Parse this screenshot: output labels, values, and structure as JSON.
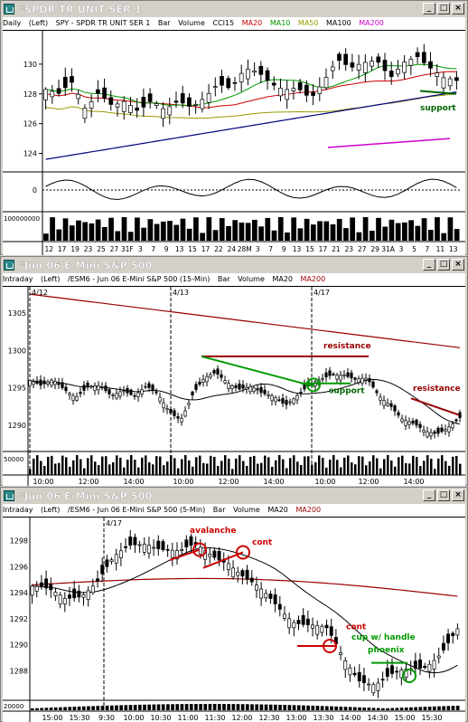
{
  "windows": [
    {
      "title": "*SPDR TR UNIT SER 1",
      "header": {
        "interval": "Daily",
        "scale": "(Left)",
        "symbol": "SPY - SPDR TR UNIT SER 1",
        "chart_type": "Bar",
        "volume": "Volume",
        "indicator": "CCI15",
        "studies": [
          {
            "label": "MA20",
            "color": "#cc0000"
          },
          {
            "label": "MA10",
            "color": "#009900"
          },
          {
            "label": "MA50",
            "color": "#999900"
          },
          {
            "label": "MA100",
            "color": "#000000"
          },
          {
            "label": "MA200",
            "color": "#cc00cc"
          }
        ]
      },
      "price_ticks": [
        "130",
        "128",
        "126",
        "124"
      ],
      "cci_ticks": [
        "0"
      ],
      "volume_label": "100000000",
      "x_ticks": [
        "12",
        "17",
        "19",
        "23",
        "25",
        "27",
        "31F",
        "3",
        "7",
        "9",
        "13",
        "15",
        "17",
        "22",
        "24",
        "28M",
        "3",
        "7",
        "9",
        "13",
        "15",
        "17",
        "21",
        "23",
        "27",
        "29",
        "31A",
        "3",
        "5",
        "7",
        "11",
        "13"
      ],
      "annotations": [
        {
          "text": "support",
          "color": "#006600"
        }
      ]
    },
    {
      "title": "*Jun 06  E-Mini S&P 500",
      "header": {
        "interval": "Intraday",
        "scale": "(Left)",
        "symbol": "/ESM6 - Jun 06  E-Mini S&P 500  (15-Min)",
        "chart_type": "Bar",
        "volume": "Volume",
        "studies": [
          {
            "label": "MA20",
            "color": "#000000"
          },
          {
            "label": "MA200",
            "color": "#990000"
          }
        ]
      },
      "price_ticks": [
        "1305",
        "1300",
        "1295",
        "1290"
      ],
      "volume_label": "50000",
      "date_marks": [
        "4/12",
        "4/13",
        "4/17"
      ],
      "x_ticks": [
        "10:00",
        "12:00",
        "14:00",
        "10:00",
        "12:00",
        "14:00",
        "10:00",
        "12:00",
        "14:00"
      ],
      "annotations": [
        {
          "text": "resistance",
          "color": "#990000"
        },
        {
          "text": "support",
          "color": "#006600"
        },
        {
          "text": "resistance",
          "color": "#990000"
        }
      ]
    },
    {
      "title": "*Jun 06  E-Mini S&P 500",
      "header": {
        "interval": "Intraday",
        "scale": "(Left)",
        "symbol": "/ESM6 - Jun 06  E-Mini S&P 500  (5-Min)",
        "chart_type": "Bar",
        "volume": "Volume",
        "studies": [
          {
            "label": "MA20",
            "color": "#000000"
          },
          {
            "label": "MA200",
            "color": "#990000"
          }
        ]
      },
      "price_ticks": [
        "1298",
        "1296",
        "1294",
        "1292",
        "1290",
        "1288"
      ],
      "volume_label": "20000",
      "date_marks": [
        "4/17"
      ],
      "x_ticks": [
        "15:00",
        "15:30",
        "9:30",
        "10:00",
        "10:30",
        "11:00",
        "11:30",
        "12:00",
        "12:30",
        "13:00",
        "13:30",
        "14:00",
        "14:30",
        "15:00",
        "15:30"
      ],
      "annotations": [
        {
          "text": "avalanche",
          "color": "#cc0000"
        },
        {
          "text": "cont",
          "color": "#cc0000"
        },
        {
          "text": "cont",
          "color": "#cc0000"
        },
        {
          "text": "cup w/ handle",
          "color": "#009900"
        },
        {
          "text": "phoenix",
          "color": "#009900"
        }
      ]
    }
  ],
  "chart_data": [
    {
      "type": "candlestick",
      "title": "SPY - SPDR TR UNIT SER 1",
      "ylim": [
        123,
        132
      ],
      "x": [
        "12",
        "17",
        "19",
        "23",
        "25",
        "27",
        "31F",
        "3",
        "7",
        "9",
        "13",
        "15",
        "17",
        "22",
        "24",
        "28M",
        "3",
        "7",
        "9",
        "13",
        "15",
        "17",
        "21",
        "23",
        "27",
        "29",
        "31A",
        "3",
        "5",
        "7",
        "11",
        "13"
      ],
      "close": [
        128.3,
        127.8,
        128.5,
        126.8,
        128.2,
        127.5,
        127.8,
        126.9,
        127.4,
        126.6,
        127.3,
        127.1,
        128.0,
        129.0,
        128.5,
        129.6,
        129.2,
        128.4,
        128.2,
        128.6,
        128.0,
        129.1,
        130.3,
        129.5,
        129.8,
        130.1,
        129.2,
        130.4,
        130.8,
        129.8,
        128.9,
        128.6
      ],
      "series": [
        {
          "name": "MA20",
          "color": "#cc0000"
        },
        {
          "name": "MA10",
          "color": "#009900"
        },
        {
          "name": "MA50",
          "color": "#999900"
        },
        {
          "name": "MA100",
          "color": "#000000"
        },
        {
          "name": "MA200",
          "color": "#cc00cc"
        }
      ],
      "annotations": [
        "support"
      ]
    },
    {
      "type": "candlestick",
      "title": "/ESM6 - Jun 06 E-Mini S&P 500 (15-Min)",
      "ylim": [
        1287,
        1308
      ],
      "sessions": [
        "4/12",
        "4/13",
        "4/17"
      ],
      "close_path": [
        1296,
        1295,
        1296,
        1295,
        1294,
        1295,
        1295,
        1294,
        1295,
        1294,
        1295,
        1294,
        1292,
        1291,
        1294,
        1296,
        1297,
        1296,
        1295,
        1295,
        1294,
        1294,
        1293,
        1294,
        1295,
        1296,
        1297,
        1297,
        1296,
        1296,
        1294,
        1293,
        1291,
        1290,
        1289,
        1289,
        1290,
        1291
      ],
      "series": [
        {
          "name": "MA20",
          "color": "#000000"
        },
        {
          "name": "MA200",
          "color": "#990000"
        }
      ],
      "annotations": [
        "resistance",
        "support",
        "resistance"
      ]
    },
    {
      "type": "candlestick",
      "title": "/ESM6 - Jun 06 E-Mini S&P 500 (5-Min)",
      "ylim": [
        1286,
        1299.5
      ],
      "x_ticks": [
        "15:00",
        "15:30",
        "9:30",
        "10:00",
        "10:30",
        "11:00",
        "11:30",
        "12:00",
        "12:30",
        "13:00",
        "13:30",
        "14:00",
        "14:30",
        "15:00",
        "15:30"
      ],
      "close_path": [
        1294.5,
        1294,
        1293.5,
        1294,
        1295,
        1296.5,
        1297.5,
        1298,
        1297.5,
        1297,
        1297.5,
        1297,
        1296.5,
        1295,
        1294,
        1293,
        1292,
        1291.5,
        1291,
        1289,
        1287.5,
        1287,
        1287.5,
        1288,
        1288.5,
        1289.5,
        1291
      ],
      "series": [
        {
          "name": "MA20",
          "color": "#000000"
        },
        {
          "name": "MA200",
          "color": "#990000"
        }
      ],
      "annotations": [
        "avalanche",
        "cont",
        "cont",
        "cup w/ handle",
        "phoenix"
      ]
    }
  ]
}
